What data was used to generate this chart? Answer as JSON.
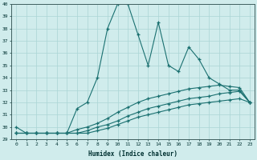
{
  "xlabel": "Humidex (Indice chaleur)",
  "x": [
    0,
    1,
    2,
    3,
    4,
    5,
    6,
    7,
    8,
    9,
    10,
    11,
    12,
    13,
    14,
    15,
    16,
    17,
    18,
    19,
    20,
    21,
    22,
    23
  ],
  "line1": [
    30,
    29.5,
    29.5,
    29.5,
    29.5,
    29.5,
    31.5,
    32,
    34,
    38,
    40,
    40,
    37.5,
    35,
    38.5,
    35,
    34.5,
    36.5,
    35.5,
    34,
    33.5,
    33,
    33,
    32
  ],
  "line2": [
    29.5,
    29.5,
    29.5,
    29.5,
    29.5,
    29.5,
    29.8,
    30.0,
    30.3,
    30.7,
    31.2,
    31.6,
    32.0,
    32.3,
    32.5,
    32.7,
    32.9,
    33.1,
    33.2,
    33.3,
    33.4,
    33.3,
    33.2,
    32
  ],
  "line3": [
    29.5,
    29.5,
    29.5,
    29.5,
    29.5,
    29.5,
    29.5,
    29.7,
    30.0,
    30.2,
    30.5,
    30.9,
    31.2,
    31.5,
    31.7,
    31.9,
    32.1,
    32.3,
    32.4,
    32.5,
    32.7,
    32.8,
    32.9,
    32
  ],
  "line4": [
    29.5,
    29.5,
    29.5,
    29.5,
    29.5,
    29.5,
    29.5,
    29.5,
    29.7,
    29.9,
    30.2,
    30.5,
    30.8,
    31.0,
    31.2,
    31.4,
    31.6,
    31.8,
    31.9,
    32.0,
    32.1,
    32.2,
    32.3,
    32
  ],
  "line_color": "#1a7070",
  "bg_color": "#d0ecec",
  "grid_color": "#aad4d4",
  "ylim": [
    29,
    40
  ],
  "xlim": [
    0,
    23
  ],
  "yticks": [
    29,
    30,
    31,
    32,
    33,
    34,
    35,
    36,
    37,
    38,
    39,
    40
  ],
  "xticks": [
    0,
    1,
    2,
    3,
    4,
    5,
    6,
    7,
    8,
    9,
    10,
    11,
    12,
    13,
    14,
    15,
    16,
    17,
    18,
    19,
    20,
    21,
    22,
    23
  ]
}
